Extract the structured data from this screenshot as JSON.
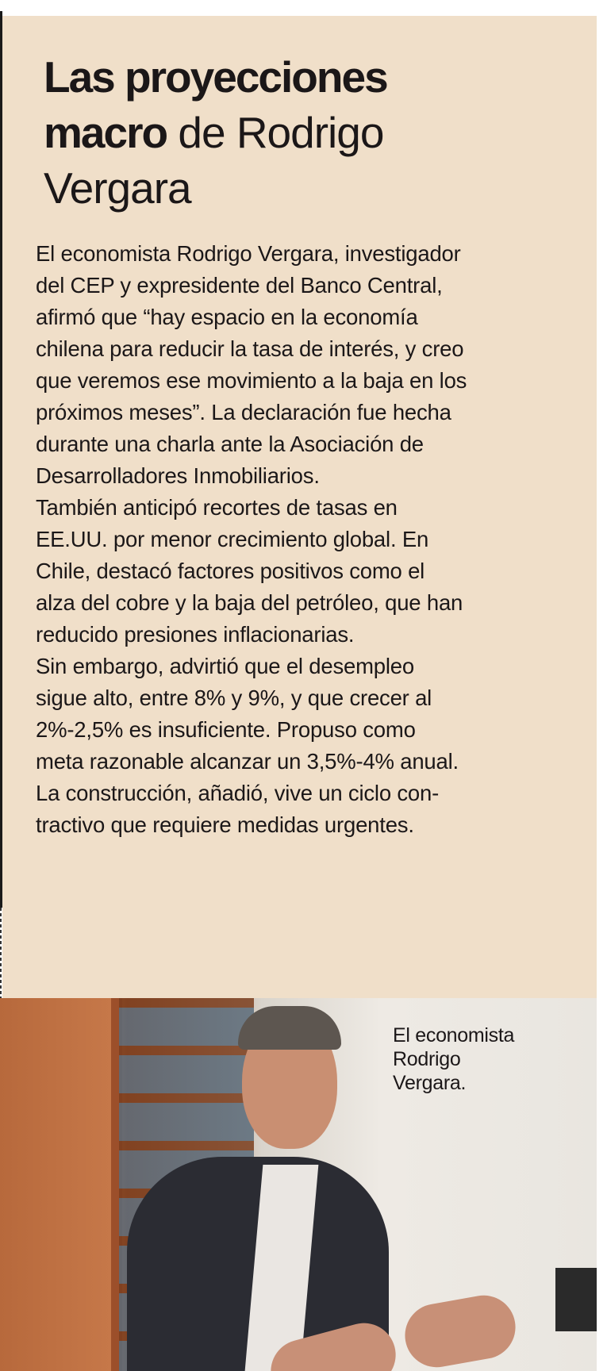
{
  "article": {
    "title_bold_line1": "Las proyecciones",
    "title_bold_line2": "macro",
    "title_regular_line2": "de  Rodrigo",
    "title_regular_line3": "Vergara",
    "paragraphs": [
      [
        "El economista Rodrigo Vergara, investigador",
        "del CEP y expresidente del Banco Central,",
        "afirmó que “hay espacio en la economía",
        "chilena para reducir la tasa de interés, y creo",
        "que veremos ese movimiento a la baja en los",
        "próximos meses”. La declaración fue hecha",
        "durante una charla ante la Asociación de",
        "Desarrolladores Inmobiliarios."
      ],
      [
        "También anticipó recortes de tasas en",
        "EE.UU. por menor crecimiento global. En",
        "Chile, destacó factores positivos como el",
        "alza del cobre y la baja del petróleo, que han",
        "reducido presiones inflacionarias."
      ],
      [
        "Sin embargo, advirtió que el desempleo",
        "sigue alto, entre 8% y 9%, y que crecer al",
        "2%-2,5% es insuficiente. Propuso como",
        "meta razonable alcanzar un 3,5%-4% anual.",
        "La construcción, añadió, vive un ciclo con-",
        "tractivo que requiere medidas urgentes."
      ]
    ]
  },
  "photo": {
    "caption_lines": [
      "El economista",
      "Rodrigo",
      "Vergara."
    ]
  },
  "colors": {
    "box_background": "#f0dfc9",
    "text": "#1b1718"
  }
}
